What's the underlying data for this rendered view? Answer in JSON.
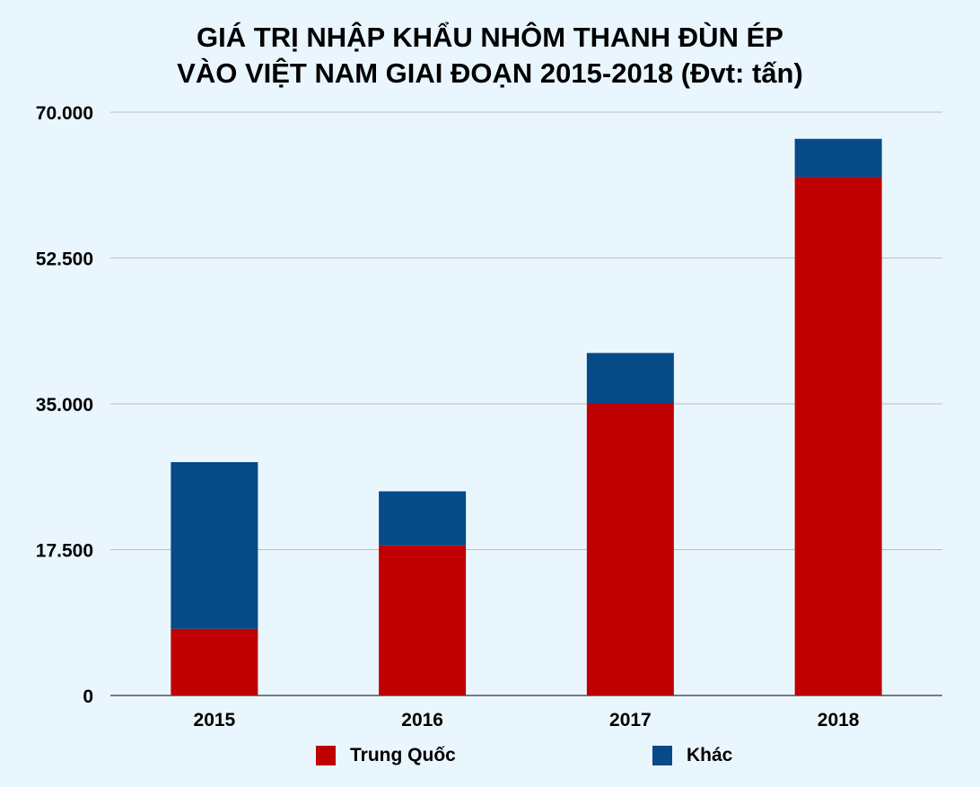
{
  "chart_data": {
    "type": "bar",
    "stacked": true,
    "title": [
      "GIÁ TRỊ NHẬP KHẨU NHÔM THANH ĐÙN ÉP",
      "VÀO VIỆT NAM GIAI ĐOẠN 2015-2018 (Đvt: tấn)"
    ],
    "categories": [
      "2015",
      "2016",
      "2017",
      "2018"
    ],
    "series": [
      {
        "name": "Trung Quốc",
        "color": "#c00000",
        "values": [
          8000,
          18000,
          35000,
          62200
        ]
      },
      {
        "name": "Khác",
        "color": "#064a87",
        "values": [
          20000,
          6500,
          6100,
          4600
        ]
      }
    ],
    "ylim": [
      0,
      70000
    ],
    "yticks": [
      0,
      17500,
      35000,
      52500,
      70000
    ],
    "ytick_labels": [
      "0",
      "17.500",
      "35.000",
      "52.500",
      "70.000"
    ],
    "grid": true,
    "legend_position": "bottom"
  }
}
